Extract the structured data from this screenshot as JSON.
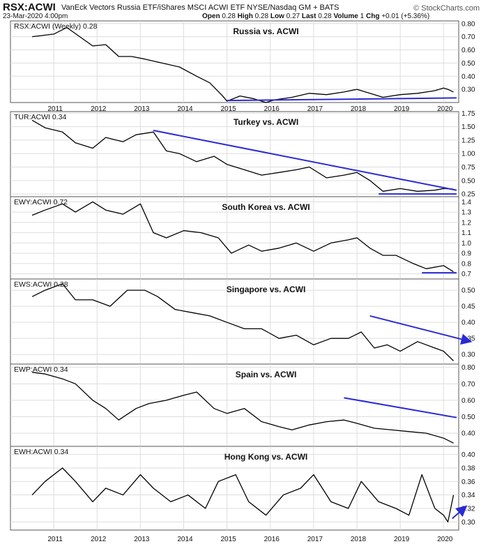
{
  "header": {
    "symbol": "RSX:ACWI",
    "description": "VanEck Vectors Russia ETF/iShares MSCI ACWI ETF NYSE/Nasdaq GM + BATS",
    "date": "23-Mar-2020 4:00pm",
    "open_label": "Open",
    "open": "0.28",
    "high_label": "High",
    "high": "0.28",
    "low_label": "Low",
    "low": "0.27",
    "last_label": "Last",
    "last": "0.28",
    "volume_label": "Volume",
    "volume": "1",
    "chg_label": "Chg",
    "chg": "+0.01 (+5.36%)",
    "logo": "© StockCharts.com"
  },
  "colors": {
    "line": "#000000",
    "trend": "#2a2ad6",
    "grid": "#dddddd"
  },
  "x_years": [
    "2011",
    "2012",
    "2013",
    "2014",
    "2015",
    "2016",
    "2017",
    "2018",
    "2019",
    "2020"
  ],
  "chart_data": [
    {
      "type": "line",
      "label": "RSX:ACWI (Weekly) 0.28",
      "title": "Russia vs. ACWI",
      "ylim": [
        0.2,
        0.82
      ],
      "yticks": [
        "0.80",
        "0.70",
        "0.60",
        "0.50",
        "0.40",
        "0.30"
      ],
      "x": [
        2010.5,
        2011,
        2011.3,
        2011.6,
        2011.9,
        2012.2,
        2012.5,
        2012.8,
        2013.1,
        2013.5,
        2013.9,
        2014.3,
        2014.6,
        2014.9,
        2015.0,
        2015.3,
        2015.6,
        2015.9,
        2016.1,
        2016.5,
        2016.9,
        2017.3,
        2017.7,
        2018.0,
        2018.3,
        2018.6,
        2019.0,
        2019.4,
        2019.8,
        2020.0,
        2020.1,
        2020.23
      ],
      "y": [
        0.7,
        0.72,
        0.77,
        0.7,
        0.63,
        0.64,
        0.55,
        0.55,
        0.53,
        0.5,
        0.47,
        0.4,
        0.35,
        0.25,
        0.21,
        0.25,
        0.23,
        0.2,
        0.22,
        0.24,
        0.27,
        0.26,
        0.28,
        0.3,
        0.27,
        0.24,
        0.26,
        0.27,
        0.29,
        0.31,
        0.3,
        0.28
      ],
      "trendlines": [
        {
          "x": [
            2015.0,
            2020.3
          ],
          "y": [
            0.215,
            0.235
          ]
        }
      ]
    },
    {
      "type": "line",
      "label": "TUR:ACWI 0.34",
      "title": "Turkey vs. ACWI",
      "ylim": [
        0.2,
        1.78
      ],
      "yticks": [
        "1.75",
        "1.50",
        "1.25",
        "1.00",
        "0.75",
        "0.50",
        "0.25"
      ],
      "x": [
        2010.5,
        2010.8,
        2011.2,
        2011.5,
        2011.9,
        2012.2,
        2012.6,
        2012.9,
        2013.3,
        2013.6,
        2013.9,
        2014.3,
        2014.7,
        2015.0,
        2015.4,
        2015.8,
        2016.2,
        2016.6,
        2016.9,
        2017.3,
        2017.7,
        2018.0,
        2018.3,
        2018.6,
        2019.0,
        2019.4,
        2019.8,
        2020.0,
        2020.23
      ],
      "y": [
        1.62,
        1.48,
        1.4,
        1.2,
        1.1,
        1.3,
        1.22,
        1.35,
        1.4,
        1.05,
        1.0,
        0.85,
        0.95,
        0.8,
        0.7,
        0.6,
        0.65,
        0.7,
        0.75,
        0.55,
        0.6,
        0.65,
        0.5,
        0.3,
        0.35,
        0.3,
        0.32,
        0.35,
        0.34
      ],
      "trendlines": [
        {
          "x": [
            2013.3,
            2020.3
          ],
          "y": [
            1.43,
            0.32
          ]
        },
        {
          "x": [
            2018.5,
            2020.3
          ],
          "y": [
            0.25,
            0.25
          ]
        }
      ]
    },
    {
      "type": "line",
      "label": "EWY:ACWI 0.72",
      "title": "South Korea vs. ACWI",
      "ylim": [
        0.65,
        1.45
      ],
      "yticks": [
        "1.4",
        "1.3",
        "1.2",
        "1.1",
        "1.0",
        "0.9",
        "0.8",
        "0.7"
      ],
      "x": [
        2010.5,
        2010.8,
        2011.2,
        2011.5,
        2011.9,
        2012.2,
        2012.6,
        2013.0,
        2013.3,
        2013.6,
        2014.0,
        2014.4,
        2014.8,
        2015.1,
        2015.5,
        2015.8,
        2016.2,
        2016.6,
        2017.0,
        2017.4,
        2017.8,
        2018.0,
        2018.3,
        2018.6,
        2018.9,
        2019.3,
        2019.6,
        2020.0,
        2020.23
      ],
      "y": [
        1.27,
        1.32,
        1.38,
        1.3,
        1.4,
        1.32,
        1.28,
        1.38,
        1.1,
        1.05,
        1.12,
        1.1,
        1.05,
        0.9,
        0.98,
        0.92,
        0.95,
        1.0,
        0.92,
        1.0,
        1.03,
        1.05,
        0.95,
        0.88,
        0.88,
        0.8,
        0.75,
        0.78,
        0.72
      ],
      "trendlines": [
        {
          "x": [
            2019.5,
            2020.3
          ],
          "y": [
            0.71,
            0.71
          ]
        }
      ]
    },
    {
      "type": "line",
      "label": "EWS:ACWI 0.28",
      "title": "Singapore vs. ACWI",
      "ylim": [
        0.27,
        0.535
      ],
      "yticks": [
        "0.50",
        "0.45",
        "0.40",
        "0.35",
        "0.30"
      ],
      "x": [
        2010.5,
        2010.8,
        2011.2,
        2011.5,
        2011.9,
        2012.3,
        2012.7,
        2013.1,
        2013.4,
        2013.8,
        2014.2,
        2014.6,
        2015.0,
        2015.4,
        2015.8,
        2016.2,
        2016.6,
        2017.0,
        2017.4,
        2017.8,
        2018.1,
        2018.4,
        2018.7,
        2019.0,
        2019.4,
        2019.8,
        2020.0,
        2020.23
      ],
      "y": [
        0.48,
        0.5,
        0.52,
        0.47,
        0.47,
        0.45,
        0.5,
        0.5,
        0.48,
        0.44,
        0.43,
        0.42,
        0.4,
        0.38,
        0.38,
        0.35,
        0.36,
        0.33,
        0.35,
        0.35,
        0.37,
        0.32,
        0.33,
        0.31,
        0.34,
        0.32,
        0.31,
        0.28
      ],
      "trendlines": [
        {
          "x": [
            2018.3,
            2020.6
          ],
          "y": [
            0.42,
            0.341
          ]
        }
      ]
    },
    {
      "type": "line",
      "label": "EWP:ACWI 0.34",
      "title": "Spain vs. ACWI",
      "ylim": [
        0.32,
        0.82
      ],
      "yticks": [
        "0.80",
        "0.70",
        "0.60",
        "0.50",
        "0.40"
      ],
      "x": [
        2010.5,
        2010.8,
        2011.2,
        2011.5,
        2011.9,
        2012.2,
        2012.5,
        2012.9,
        2013.2,
        2013.6,
        2014.0,
        2014.3,
        2014.7,
        2015.0,
        2015.4,
        2015.8,
        2016.2,
        2016.5,
        2016.9,
        2017.3,
        2017.7,
        2018.0,
        2018.4,
        2018.8,
        2019.2,
        2019.6,
        2020.0,
        2020.23
      ],
      "y": [
        0.77,
        0.76,
        0.73,
        0.7,
        0.6,
        0.55,
        0.48,
        0.55,
        0.58,
        0.6,
        0.63,
        0.65,
        0.55,
        0.52,
        0.55,
        0.47,
        0.44,
        0.42,
        0.45,
        0.47,
        0.48,
        0.46,
        0.43,
        0.42,
        0.41,
        0.4,
        0.37,
        0.34
      ],
      "trendlines": [
        {
          "x": [
            2017.7,
            2020.3
          ],
          "y": [
            0.615,
            0.495
          ]
        }
      ]
    },
    {
      "type": "line",
      "label": "EWH:ACWI 0.34",
      "title": "Hong Kong vs. ACWI",
      "ylim": [
        0.288,
        0.412
      ],
      "yticks": [
        "0.40",
        "0.38",
        "0.36",
        "0.34",
        "0.32",
        "0.30"
      ],
      "x": [
        2010.5,
        2010.8,
        2011.2,
        2011.5,
        2011.9,
        2012.2,
        2012.6,
        2013.0,
        2013.3,
        2013.7,
        2014.1,
        2014.5,
        2014.8,
        2015.2,
        2015.5,
        2015.9,
        2016.3,
        2016.7,
        2017.0,
        2017.4,
        2017.8,
        2018.1,
        2018.5,
        2018.9,
        2019.2,
        2019.5,
        2019.8,
        2020.0,
        2020.1,
        2020.23
      ],
      "y": [
        0.34,
        0.36,
        0.38,
        0.36,
        0.33,
        0.35,
        0.34,
        0.37,
        0.35,
        0.33,
        0.34,
        0.32,
        0.36,
        0.37,
        0.33,
        0.31,
        0.34,
        0.35,
        0.37,
        0.33,
        0.32,
        0.36,
        0.33,
        0.32,
        0.31,
        0.37,
        0.32,
        0.31,
        0.3,
        0.34
      ],
      "trendlines": [
        {
          "x": [
            2020.2,
            2020.5
          ],
          "y": [
            0.305,
            0.322
          ]
        }
      ]
    }
  ]
}
